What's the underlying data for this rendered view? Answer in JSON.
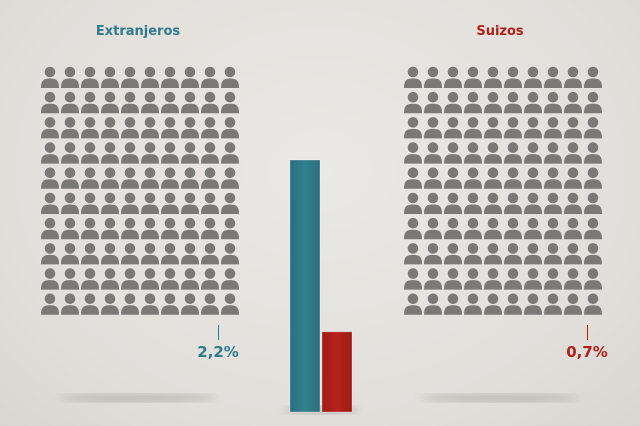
{
  "chart_data": {
    "type": "bar",
    "unit": "%",
    "categories": [
      "Extranjeros",
      "Suizos"
    ],
    "values": [
      2.2,
      0.7
    ],
    "value_labels": [
      "2,2%",
      "0,7%"
    ],
    "pictogram": {
      "rows": 10,
      "columns": 10,
      "icon": "person-icon",
      "total_icons": 100
    },
    "colors": {
      "Extranjeros": "#2e7b8d",
      "Suizos": "#b3201a",
      "neutral": "#7b7976"
    },
    "legend": "none",
    "grid": false
  }
}
